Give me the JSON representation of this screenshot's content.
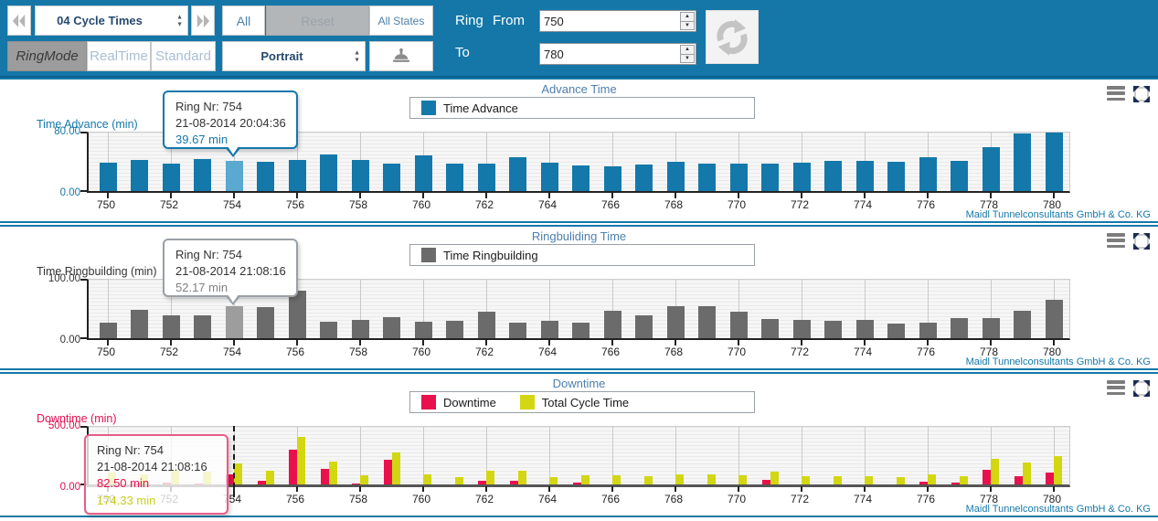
{
  "branding": "Maidl Tunnelconsultants GmbH & Co. KG",
  "colors": {
    "toolbar_blue": "#1477a8",
    "accent_blue": "#1578aa",
    "bar_blue": "#1578aa",
    "bar_blue_highlight": "#5aa9d0",
    "bar_gray": "#6b6b6b",
    "bar_gray_highlight": "#9d9d9d",
    "downtime_red": "#e8114e",
    "cycle_yellow": "#d2d712"
  },
  "icons": [
    "double-chevron-left",
    "double-chevron-right",
    "printer",
    "refresh",
    "hamburger-menu",
    "expand-fullscreen"
  ],
  "toolbar": {
    "cycle_selector": "04 Cycle Times",
    "all": "All",
    "reset": "Reset",
    "all_states": "All States",
    "ring_mode": "RingMode",
    "real_time": "RealTime",
    "standard": "Standard",
    "orientation": "Portrait",
    "ring_from_label": "Ring From",
    "to_label": "To",
    "ring_from": "750",
    "ring_to": "780"
  },
  "chart_data": {
    "type": "bar",
    "rings": [
      750,
      751,
      752,
      753,
      754,
      755,
      756,
      757,
      758,
      759,
      760,
      761,
      762,
      763,
      764,
      765,
      766,
      767,
      768,
      769,
      770,
      771,
      772,
      773,
      774,
      775,
      776,
      777,
      778,
      779,
      780
    ],
    "charts": [
      {
        "title": "Advance Time",
        "ylabel": "Time Advance (min)",
        "ylim": [
          0,
          80
        ],
        "yticks": [
          "80.00",
          "0.00"
        ],
        "highlight_ring": 754,
        "highlight_color": "#5aa9d0",
        "tooltip": {
          "ring": "Ring Nr: 754",
          "datetime": "21-08-2014 20:04:36",
          "value": "39.67 min"
        },
        "series": [
          {
            "name": "Time Advance",
            "color": "#1578aa",
            "values": [
              37,
              41,
              36,
              42,
              39.67,
              38,
              41,
              48,
              41,
              36,
              47,
              36,
              36,
              44,
              37,
              33,
              32,
              35,
              38,
              36,
              36,
              36,
              37,
              40,
              39,
              38,
              44,
              39,
              57,
              75,
              77
            ]
          }
        ]
      },
      {
        "title": "Ringbuliding Time",
        "ylabel": "Time Ringbuilding (min)",
        "ylim": [
          0,
          100
        ],
        "yticks": [
          "100.00",
          "0.00"
        ],
        "highlight_ring": 754,
        "highlight_color": "#9d9d9d",
        "tooltip": {
          "ring": "Ring Nr: 754",
          "datetime": "21-08-2014 21:08:16",
          "value": "52.17 min"
        },
        "series": [
          {
            "name": "Time Ringbuilding",
            "color": "#6b6b6b",
            "values": [
              25,
              46,
              38,
              37,
              52.17,
              51,
              78,
              27,
              30,
              34,
              27,
              28,
              43,
              25,
              28,
              25,
              45,
              37,
              53,
              53,
              43,
              32,
              30,
              28,
              30,
              24,
              26,
              33,
              33,
              45,
              62
            ]
          }
        ]
      },
      {
        "title": "Downtime",
        "ylabel": "Downtime (min)",
        "ylim": [
          0,
          500
        ],
        "yticks": [
          "500.00",
          "0.00"
        ],
        "marker_ring": 754,
        "tooltip": {
          "ring": "Ring Nr: 754",
          "datetime": "21-08-2014 21:08:16",
          "value1": "82.50 min",
          "value2": "174.33 min"
        },
        "series": [
          {
            "name": "Downtime",
            "color": "#e8114e",
            "values": [
              10,
              5,
              15,
              5,
              82.5,
              30,
              280,
              130,
              5,
              205,
              0,
              0,
              30,
              30,
              0,
              15,
              0,
              0,
              0,
              0,
              0,
              35,
              0,
              0,
              0,
              0,
              20,
              12,
              120,
              70,
              95
            ]
          },
          {
            "name": "Total Cycle Time",
            "color": "#d2d712",
            "values": [
              100,
              85,
              110,
              105,
              174.33,
              115,
              390,
              190,
              75,
              265,
              85,
              60,
              110,
              110,
              60,
              75,
              75,
              65,
              85,
              85,
              75,
              105,
              65,
              65,
              65,
              60,
              85,
              70,
              210,
              180,
              230
            ]
          }
        ]
      }
    ]
  }
}
